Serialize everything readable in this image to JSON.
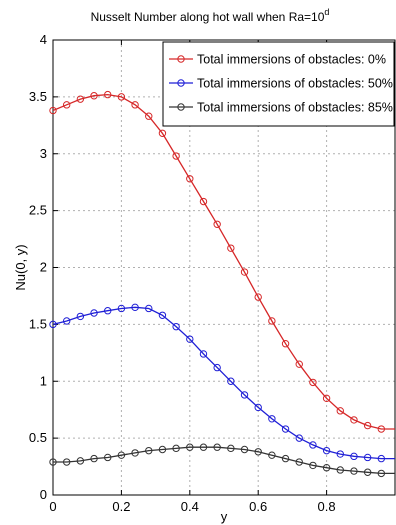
{
  "chart_data": {
    "type": "line",
    "title_main": "Nusselt Number along hot wall when Ra=10",
    "title_sup": "d",
    "xlabel": "y",
    "ylabel": "Nu(0, y)",
    "xlim": [
      0,
      1
    ],
    "ylim": [
      0,
      4
    ],
    "xticks": [
      0,
      0.2,
      0.4,
      0.6,
      0.8
    ],
    "xtick_labels": [
      "0",
      "0.2",
      "0.4",
      "0.6",
      "0.8"
    ],
    "yticks": [
      0,
      0.5,
      1,
      1.5,
      2,
      2.5,
      3,
      3.5,
      4
    ],
    "ytick_labels": [
      "0",
      "0.5",
      "1",
      "1.5",
      "2",
      "2.5",
      "3",
      "3.5",
      "4"
    ],
    "grid": true,
    "legend_position": "top-right",
    "marker": "circle",
    "x": [
      0,
      0.04,
      0.08,
      0.12,
      0.16,
      0.2,
      0.24,
      0.28,
      0.32,
      0.36,
      0.4,
      0.44,
      0.48,
      0.52,
      0.56,
      0.6,
      0.64,
      0.68,
      0.72,
      0.76,
      0.8,
      0.84,
      0.88,
      0.92,
      0.96
    ],
    "series": [
      {
        "name": "Total immersions of obstacles: 0%",
        "color": "#d62728",
        "values": [
          3.38,
          3.43,
          3.48,
          3.51,
          3.52,
          3.5,
          3.43,
          3.33,
          3.18,
          2.98,
          2.78,
          2.58,
          2.38,
          2.17,
          1.96,
          1.74,
          1.53,
          1.33,
          1.15,
          0.99,
          0.85,
          0.74,
          0.66,
          0.61,
          0.58
        ]
      },
      {
        "name": "Total immersions of obstacles: 50%",
        "color": "#1f1fd6",
        "values": [
          1.5,
          1.53,
          1.57,
          1.6,
          1.62,
          1.64,
          1.65,
          1.64,
          1.58,
          1.48,
          1.37,
          1.24,
          1.12,
          1.0,
          0.88,
          0.77,
          0.67,
          0.58,
          0.5,
          0.44,
          0.39,
          0.36,
          0.34,
          0.33,
          0.32
        ]
      },
      {
        "name": "Total immersions of obstacles: 85%",
        "color": "#333333",
        "values": [
          0.29,
          0.29,
          0.3,
          0.32,
          0.33,
          0.35,
          0.37,
          0.39,
          0.4,
          0.41,
          0.42,
          0.42,
          0.42,
          0.41,
          0.4,
          0.38,
          0.35,
          0.32,
          0.29,
          0.26,
          0.24,
          0.22,
          0.21,
          0.2,
          0.19
        ]
      }
    ]
  }
}
